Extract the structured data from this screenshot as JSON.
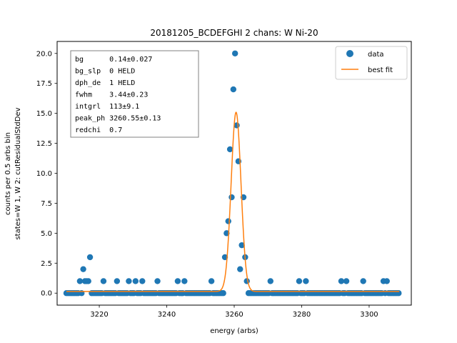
{
  "chart_data": {
    "type": "scatter",
    "title": "20181205_BCDEFGHI 2 chans: W Ni-20",
    "xlabel": "energy (arbs)",
    "ylabel_lines": [
      "counts per 0.5 arbs bin",
      "states=W 1, W 2: cutResidualStdDev"
    ],
    "xlim": [
      3207.5,
      3312.5
    ],
    "ylim": [
      -1.0,
      21.0
    ],
    "xticks": [
      3220,
      3240,
      3260,
      3280,
      3300
    ],
    "xtick_labels": [
      "3220",
      "3240",
      "3260",
      "3280",
      "3300"
    ],
    "yticks": [
      0.0,
      2.5,
      5.0,
      7.5,
      10.0,
      12.5,
      15.0,
      17.5,
      20.0
    ],
    "ytick_labels": [
      "0.0",
      "2.5",
      "5.0",
      "7.5",
      "10.0",
      "12.5",
      "15.0",
      "17.5",
      "20.0"
    ],
    "grid": false,
    "legend_position": "top-right",
    "colors": {
      "data": "#1f77b4",
      "fit": "#ff7f0e"
    },
    "series": [
      {
        "name": "data",
        "kind": "points",
        "x_start": 3210.25,
        "x_step": 0.5,
        "count": 198,
        "nonzero": [
          [
            3214.25,
            1
          ],
          [
            3215.25,
            2
          ],
          [
            3215.75,
            1
          ],
          [
            3216.25,
            1
          ],
          [
            3216.75,
            1
          ],
          [
            3217.25,
            3
          ],
          [
            3221.25,
            1
          ],
          [
            3225.25,
            1
          ],
          [
            3228.75,
            1
          ],
          [
            3230.75,
            1
          ],
          [
            3232.75,
            1
          ],
          [
            3237.25,
            1
          ],
          [
            3243.25,
            1
          ],
          [
            3245.25,
            1
          ],
          [
            3253.25,
            1
          ],
          [
            3257.25,
            3
          ],
          [
            3257.75,
            5
          ],
          [
            3258.25,
            6
          ],
          [
            3258.75,
            12
          ],
          [
            3259.25,
            8
          ],
          [
            3259.75,
            17
          ],
          [
            3260.25,
            20
          ],
          [
            3260.75,
            14
          ],
          [
            3261.25,
            11
          ],
          [
            3261.75,
            2
          ],
          [
            3262.25,
            4
          ],
          [
            3262.75,
            8
          ],
          [
            3263.25,
            3
          ],
          [
            3263.75,
            1
          ],
          [
            3270.75,
            1
          ],
          [
            3279.25,
            1
          ],
          [
            3281.25,
            1
          ],
          [
            3291.75,
            1
          ],
          [
            3293.25,
            1
          ],
          [
            3298.25,
            1
          ],
          [
            3304.25,
            1
          ],
          [
            3305.25,
            1
          ]
        ]
      },
      {
        "name": "best fit",
        "kind": "line",
        "model": "gaussian",
        "peak_ph": 3260.55,
        "fwhm": 3.44,
        "amplitude": 14.95,
        "background": 0.14,
        "x_range": [
          3210.25,
          3309.0
        ]
      }
    ],
    "params_box": {
      "lines": [
        "bg      0.14±0.027",
        "bg_slp  0 HELD",
        "dph_de  1 HELD",
        "fwhm    3.44±0.23",
        "intgrl  113±9.1",
        "peak_ph 3260.55±0.13",
        "redchi  0.7"
      ]
    }
  }
}
